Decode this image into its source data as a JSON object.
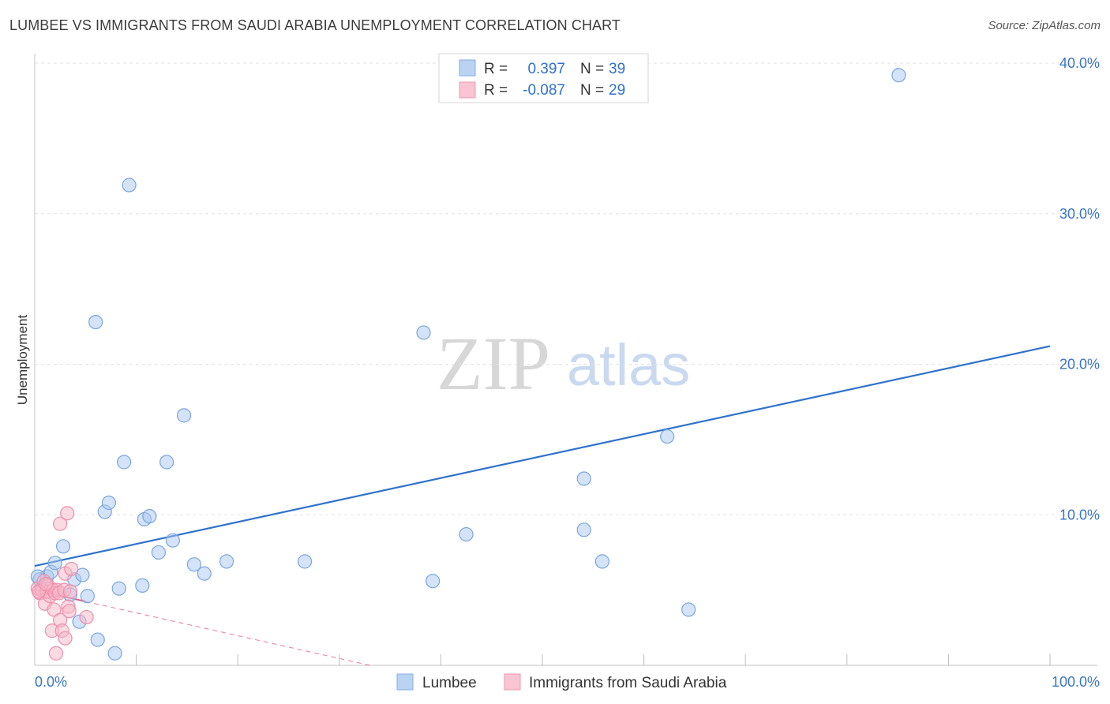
{
  "header": {
    "title": "LUMBEE VS IMMIGRANTS FROM SAUDI ARABIA UNEMPLOYMENT CORRELATION CHART",
    "source": "Source: ZipAtlas.com"
  },
  "watermark": {
    "zip": "ZIP",
    "atlas": "atlas"
  },
  "legend": {
    "rows": [
      {
        "r_label": "R =",
        "r_value": "0.397",
        "n_label": "N =",
        "n_value": "39"
      },
      {
        "r_label": "R =",
        "r_value": "-0.087",
        "n_label": "N =",
        "n_value": "29"
      }
    ]
  },
  "chart_data": {
    "type": "scatter",
    "title": "LUMBEE VS IMMIGRANTS FROM SAUDI ARABIA UNEMPLOYMENT CORRELATION CHART",
    "xlabel": "",
    "ylabel": "Unemployment",
    "xlim": [
      0,
      100
    ],
    "ylim": [
      0,
      40
    ],
    "x_tick_labels": [
      "0.0%",
      "100.0%"
    ],
    "y_ticks": [
      10,
      20,
      30,
      40
    ],
    "y_tick_labels": [
      "10.0%",
      "20.0%",
      "30.0%",
      "40.0%"
    ],
    "grid": true,
    "series": [
      {
        "name": "Lumbee",
        "color": "#a9c7ef",
        "stroke": "#7aa6de",
        "line_color": "#2f72cc",
        "R": 0.397,
        "N": 39,
        "trend": {
          "x": [
            0,
            100
          ],
          "y": [
            6.6,
            21.2
          ]
        },
        "points": [
          [
            0.5,
            5.7
          ],
          [
            1.2,
            5.9
          ],
          [
            1.6,
            6.2
          ],
          [
            2.0,
            6.8
          ],
          [
            2.8,
            7.9
          ],
          [
            3.5,
            4.7
          ],
          [
            3.9,
            5.7
          ],
          [
            4.4,
            2.9
          ],
          [
            4.7,
            6.0
          ],
          [
            5.2,
            4.6
          ],
          [
            6.0,
            22.8
          ],
          [
            6.2,
            1.7
          ],
          [
            6.9,
            10.2
          ],
          [
            7.3,
            10.8
          ],
          [
            7.9,
            0.8
          ],
          [
            8.3,
            5.1
          ],
          [
            8.8,
            13.5
          ],
          [
            9.3,
            31.9
          ],
          [
            10.6,
            5.3
          ],
          [
            10.8,
            9.7
          ],
          [
            11.3,
            9.9
          ],
          [
            12.2,
            7.5
          ],
          [
            13.0,
            13.5
          ],
          [
            13.6,
            8.3
          ],
          [
            14.7,
            16.6
          ],
          [
            15.7,
            6.7
          ],
          [
            16.7,
            6.1
          ],
          [
            18.9,
            6.9
          ],
          [
            26.6,
            6.9
          ],
          [
            38.3,
            22.1
          ],
          [
            39.2,
            5.6
          ],
          [
            42.5,
            8.7
          ],
          [
            54.1,
            12.4
          ],
          [
            54.1,
            9.0
          ],
          [
            55.9,
            6.9
          ],
          [
            62.3,
            15.2
          ],
          [
            64.4,
            3.7
          ],
          [
            85.1,
            39.2
          ],
          [
            0.3,
            5.9
          ]
        ]
      },
      {
        "name": "Immigrants from Saudi Arabia",
        "color": "#f6b6c8",
        "stroke": "#ee8fab",
        "line_color": "#e35a86",
        "R": -0.087,
        "N": 29,
        "trend": {
          "x": [
            0,
            33
          ],
          "y": [
            5.0,
            0.0
          ],
          "solid_until_x": 5
        },
        "points": [
          [
            0.3,
            5.1
          ],
          [
            0.5,
            4.8
          ],
          [
            0.7,
            5.0
          ],
          [
            0.9,
            5.6
          ],
          [
            1.0,
            4.1
          ],
          [
            1.2,
            4.9
          ],
          [
            1.3,
            5.3
          ],
          [
            1.5,
            4.6
          ],
          [
            1.7,
            2.3
          ],
          [
            1.8,
            5.0
          ],
          [
            1.9,
            3.7
          ],
          [
            2.0,
            4.8
          ],
          [
            2.1,
            0.8
          ],
          [
            2.2,
            5.0
          ],
          [
            2.4,
            4.8
          ],
          [
            2.5,
            3.0
          ],
          [
            2.5,
            9.4
          ],
          [
            2.7,
            2.3
          ],
          [
            2.9,
            5.0
          ],
          [
            3.0,
            6.1
          ],
          [
            3.0,
            1.8
          ],
          [
            3.2,
            10.1
          ],
          [
            3.3,
            3.9
          ],
          [
            3.4,
            3.6
          ],
          [
            3.5,
            4.9
          ],
          [
            3.6,
            6.4
          ],
          [
            5.1,
            3.2
          ],
          [
            0.4,
            4.9
          ],
          [
            1.1,
            5.4
          ]
        ]
      }
    ]
  }
}
